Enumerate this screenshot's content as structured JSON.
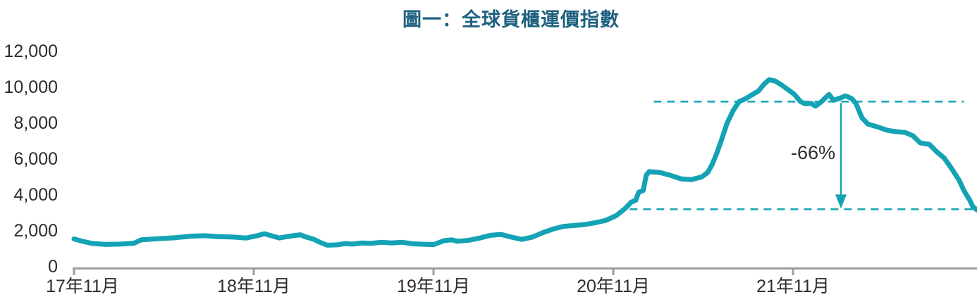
{
  "title": "圖一：全球貨櫃運價指數",
  "colors": {
    "line": "#14A3B4",
    "dashed_line": "#14A3B4",
    "arrow": "#14A3B4",
    "title_text": "#1F617F",
    "axis_text": "#322B2B",
    "annotation_text": "#322B2B",
    "axis_line": "#9D9D9B",
    "background": "#FFFFFF"
  },
  "chart_data": {
    "type": "line",
    "title": "圖一：全球貨櫃運價指數",
    "xlabel": "",
    "ylabel": "",
    "grid": false,
    "legend": false,
    "x_unit": "months since 2017-11",
    "x_range_months": [
      0,
      60.3
    ],
    "x_tick_positions_months": [
      0,
      12,
      24,
      36,
      48
    ],
    "x_tick_labels": [
      "17年11月",
      "18年11月",
      "19年11月",
      "20年11月",
      "21年11月"
    ],
    "ylim": [
      0,
      12000
    ],
    "y_ticks": [
      0,
      2000,
      4000,
      6000,
      8000,
      10000,
      12000
    ],
    "y_tick_labels": [
      "0",
      "2,000",
      "4,000",
      "6,000",
      "8,000",
      "10,000",
      "12,000"
    ],
    "series": [
      {
        "name": "全球貨櫃運價指數",
        "points": [
          [
            0,
            1550
          ],
          [
            0.5,
            1430
          ],
          [
            1.2,
            1300
          ],
          [
            2.1,
            1240
          ],
          [
            3.1,
            1260
          ],
          [
            4.0,
            1310
          ],
          [
            4.5,
            1500
          ],
          [
            5.6,
            1560
          ],
          [
            6.8,
            1620
          ],
          [
            7.8,
            1700
          ],
          [
            8.7,
            1730
          ],
          [
            9.6,
            1680
          ],
          [
            10.6,
            1650
          ],
          [
            11.5,
            1600
          ],
          [
            12.2,
            1720
          ],
          [
            12.7,
            1840
          ],
          [
            13.2,
            1720
          ],
          [
            13.7,
            1600
          ],
          [
            14.4,
            1700
          ],
          [
            15.1,
            1780
          ],
          [
            15.5,
            1650
          ],
          [
            16.0,
            1530
          ],
          [
            16.5,
            1330
          ],
          [
            16.9,
            1200
          ],
          [
            17.6,
            1220
          ],
          [
            18.1,
            1290
          ],
          [
            18.6,
            1260
          ],
          [
            19.2,
            1320
          ],
          [
            19.8,
            1300
          ],
          [
            20.5,
            1360
          ],
          [
            21.2,
            1320
          ],
          [
            21.9,
            1360
          ],
          [
            22.6,
            1280
          ],
          [
            23.3,
            1250
          ],
          [
            24.0,
            1230
          ],
          [
            24.7,
            1450
          ],
          [
            25.2,
            1500
          ],
          [
            25.6,
            1420
          ],
          [
            26.4,
            1480
          ],
          [
            27.1,
            1600
          ],
          [
            27.8,
            1750
          ],
          [
            28.5,
            1800
          ],
          [
            29.2,
            1650
          ],
          [
            29.9,
            1520
          ],
          [
            30.6,
            1650
          ],
          [
            31.3,
            1900
          ],
          [
            32.0,
            2100
          ],
          [
            32.7,
            2250
          ],
          [
            33.4,
            2300
          ],
          [
            34.1,
            2350
          ],
          [
            34.8,
            2450
          ],
          [
            35.5,
            2580
          ],
          [
            36.2,
            2850
          ],
          [
            36.8,
            3250
          ],
          [
            37.2,
            3600
          ],
          [
            37.5,
            3700
          ],
          [
            37.7,
            4150
          ],
          [
            38.0,
            4250
          ],
          [
            38.2,
            5100
          ],
          [
            38.4,
            5300
          ],
          [
            39.1,
            5250
          ],
          [
            39.8,
            5100
          ],
          [
            40.5,
            4900
          ],
          [
            41.2,
            4850
          ],
          [
            41.9,
            5000
          ],
          [
            42.3,
            5250
          ],
          [
            42.6,
            5700
          ],
          [
            42.9,
            6300
          ],
          [
            43.2,
            7000
          ],
          [
            43.6,
            8000
          ],
          [
            44.0,
            8700
          ],
          [
            44.4,
            9200
          ],
          [
            44.8,
            9350
          ],
          [
            45.2,
            9550
          ],
          [
            45.7,
            9800
          ],
          [
            46.1,
            10200
          ],
          [
            46.4,
            10420
          ],
          [
            46.8,
            10350
          ],
          [
            47.2,
            10150
          ],
          [
            47.7,
            9850
          ],
          [
            48.1,
            9600
          ],
          [
            48.5,
            9200
          ],
          [
            48.8,
            9080
          ],
          [
            49.2,
            9100
          ],
          [
            49.5,
            8950
          ],
          [
            49.9,
            9200
          ],
          [
            50.4,
            9600
          ],
          [
            50.7,
            9280
          ],
          [
            51.1,
            9380
          ],
          [
            51.5,
            9520
          ],
          [
            51.9,
            9380
          ],
          [
            52.2,
            9100
          ],
          [
            52.6,
            8300
          ],
          [
            53.0,
            7950
          ],
          [
            53.6,
            7800
          ],
          [
            54.3,
            7600
          ],
          [
            54.9,
            7520
          ],
          [
            55.5,
            7480
          ],
          [
            56.0,
            7300
          ],
          [
            56.5,
            6900
          ],
          [
            57.1,
            6820
          ],
          [
            57.6,
            6400
          ],
          [
            58.1,
            6050
          ],
          [
            58.6,
            5450
          ],
          [
            59.1,
            4800
          ],
          [
            59.4,
            4250
          ],
          [
            59.8,
            3700
          ],
          [
            60.0,
            3350
          ],
          [
            60.3,
            3150
          ]
        ]
      }
    ],
    "annotations": {
      "upper_reference_line": {
        "value": 9200,
        "t_start": 38.7,
        "t_end": 59.4,
        "style": "dashed"
      },
      "lower_reference_line": {
        "value": 3200,
        "t_start": 37.1,
        "t_end": 60.3,
        "style": "dashed"
      },
      "drop_arrow": {
        "t": 51.2,
        "from_value": 9200,
        "to_value": 3200
      },
      "drop_label": "-66%"
    }
  }
}
